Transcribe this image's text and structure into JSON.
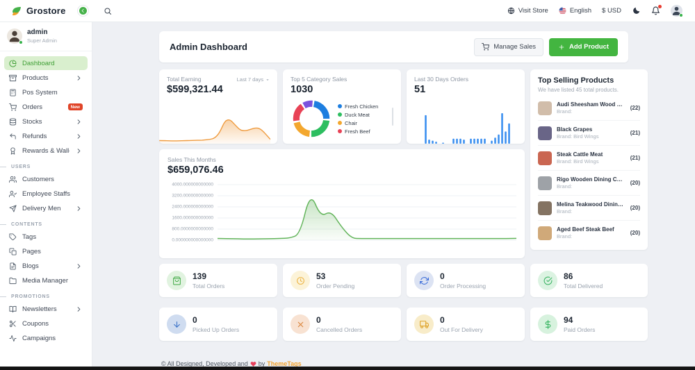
{
  "colors": {
    "primary_green": "#43b540",
    "sidebar_active_bg": "#d9efce",
    "sidebar_active_text": "#3d9e33",
    "badge_red": "#e04428",
    "footer_brand_orange": "#f2a12b",
    "earning_orange": "#ef9b3f",
    "orders_blue": "#3b8ff0",
    "sales_green": "#62b45a"
  },
  "topbar": {
    "brand": "Grostore",
    "visit_store": "Visit Store",
    "language": "English",
    "currency": "$ USD"
  },
  "sidebar": {
    "user": {
      "name": "admin",
      "role": "Super Admin"
    },
    "sections": [
      {
        "title": "",
        "items": [
          {
            "label": "Dashboard",
            "icon": "dashboard",
            "active": true
          },
          {
            "label": "Products",
            "icon": "products",
            "chevron": true
          },
          {
            "label": "Pos System",
            "icon": "pos"
          },
          {
            "label": "Orders",
            "icon": "orders",
            "badge": "New"
          },
          {
            "label": "Stocks",
            "icon": "stocks",
            "chevron": true
          },
          {
            "label": "Refunds",
            "icon": "refunds",
            "chevron": true
          },
          {
            "label": "Rewards & Wallet",
            "icon": "rewards",
            "chevron": true
          }
        ]
      },
      {
        "title": "USERS",
        "items": [
          {
            "label": "Customers",
            "icon": "customers"
          },
          {
            "label": "Employee Staffs",
            "icon": "staffs"
          },
          {
            "label": "Delivery Men",
            "icon": "delivery",
            "chevron": true
          }
        ]
      },
      {
        "title": "CONTENTS",
        "items": [
          {
            "label": "Tags",
            "icon": "tags"
          },
          {
            "label": "Pages",
            "icon": "pages"
          },
          {
            "label": "Blogs",
            "icon": "blogs",
            "chevron": true
          },
          {
            "label": "Media Manager",
            "icon": "media"
          }
        ]
      },
      {
        "title": "PROMOTIONS",
        "items": [
          {
            "label": "Newsletters",
            "icon": "newsletters",
            "chevron": true
          },
          {
            "label": "Coupons",
            "icon": "coupons"
          },
          {
            "label": "Campaigns",
            "icon": "campaigns"
          }
        ]
      }
    ]
  },
  "page": {
    "title": "Admin Dashboard",
    "actions": {
      "manage_sales": "Manage Sales",
      "add_product": "Add Product"
    },
    "cards": {
      "earning": {
        "label": "Total Earning",
        "range": "Last 7 days",
        "value": "$599,321.44"
      },
      "category": {
        "label": "Top 5 Category Sales",
        "value": "1030"
      },
      "orders30": {
        "label": "Last 30 Days Orders",
        "value": "51"
      },
      "sales": {
        "label": "Sales This Months",
        "value": "$659,076.46"
      },
      "top_products": {
        "title": "Top Selling Products",
        "subtitle": "We have listed 45 total products.",
        "items": [
          {
            "name": "Audi Sheesham Wood Dining...",
            "brand": "Brand:",
            "count": "(22)",
            "thumb": "#c9b29b"
          },
          {
            "name": "Black Grapes",
            "brand": "Brand: Bird Wings",
            "count": "(21)",
            "thumb": "#4f4a72"
          },
          {
            "name": "Steak Cattle Meat",
            "brand": "Brand: Bird Wings",
            "count": "(21)",
            "thumb": "#c14b32"
          },
          {
            "name": "Rigo Wooden Dining Chair",
            "brand": "Brand:",
            "count": "(20)",
            "thumb": "#8d9298"
          },
          {
            "name": "Melina Teakwood Dining Chair",
            "brand": "Brand:",
            "count": "(20)",
            "thumb": "#6f5b46"
          },
          {
            "name": "Aged Beef Steak Beef",
            "brand": "Brand:",
            "count": "(20)",
            "thumb": "#c89a62"
          }
        ]
      }
    },
    "stats_left": [
      {
        "value": "139",
        "label": "Total Orders",
        "icon": "bag",
        "color": "#4caf50",
        "bg": "#e1f3e0"
      },
      {
        "value": "53",
        "label": "Order Pending",
        "icon": "clock",
        "color": "#ecb445",
        "bg": "#fcf3d8"
      },
      {
        "value": "0",
        "label": "Order Processing",
        "icon": "refresh",
        "color": "#3e6fd9",
        "bg": "#dce3f3"
      },
      {
        "value": "0",
        "label": "Picked Up Orders",
        "icon": "arrowDown",
        "color": "#3a72c8",
        "bg": "#cfdcf0"
      },
      {
        "value": "0",
        "label": "Cancelled Orders",
        "icon": "x",
        "color": "#d9863c",
        "bg": "#f8e2d2"
      },
      {
        "value": "0",
        "label": "Out For Delivery",
        "icon": "truck",
        "color": "#dfa42c",
        "bg": "#f8ecc9"
      }
    ],
    "stats_right": [
      {
        "value": "86",
        "label": "Total Delivered",
        "icon": "check",
        "color": "#3cb464",
        "bg": "#dcf3e2"
      },
      {
        "value": "94",
        "label": "Paid Orders",
        "icon": "dollar",
        "color": "#35b35f",
        "bg": "#d7f2de"
      }
    ],
    "footer": {
      "text": "© All Designed, Developed and",
      "by": "by",
      "brand": "ThemeTags"
    }
  },
  "chart_data": [
    {
      "id": "earning",
      "type": "area",
      "title": "Total Earning",
      "color": "#ef9b3f",
      "ylim": [
        0,
        100
      ],
      "grid": false,
      "values": [
        6,
        6,
        5,
        5,
        5,
        6,
        6,
        7,
        7,
        8,
        10,
        14,
        34,
        74,
        79,
        60,
        42,
        39,
        44,
        50,
        47,
        30,
        10
      ]
    },
    {
      "id": "category",
      "type": "pie",
      "title": "Top 5 Category Sales",
      "total_label": "1030",
      "legend_position": "right",
      "segments": [
        {
          "label": "Fresh Chicken",
          "value": 24,
          "color": "#1d7ee0"
        },
        {
          "label": "Duck Meat",
          "value": 25,
          "color": "#2dbe60"
        },
        {
          "label": "Chair",
          "value": 21,
          "color": "#f3a72e"
        },
        {
          "label": "Fresh Beef",
          "value": 19,
          "color": "#e84256"
        },
        {
          "label": "",
          "value": 11,
          "color": "#7a52dd"
        }
      ]
    },
    {
      "id": "orders30",
      "type": "bar",
      "title": "Last 30 Days Orders",
      "color": "#3b8ff0",
      "ylim": [
        0,
        30
      ],
      "grid": false,
      "values": [
        0,
        0,
        0,
        0,
        0,
        28,
        4,
        3,
        2,
        0,
        1,
        0,
        0,
        5,
        5,
        5,
        4,
        0,
        5,
        5,
        5,
        5,
        5,
        0,
        3,
        6,
        9,
        30,
        12,
        20
      ]
    },
    {
      "id": "sales",
      "type": "line",
      "title": "Sales This Months",
      "color": "#62b45a",
      "ylim": [
        0,
        4000
      ],
      "grid": true,
      "yticks": [
        "4000.000000000000",
        "3200.000000000000",
        "2400.000000000000",
        "1600.000000000000",
        "800.0000000000000",
        "0.000000000000000"
      ],
      "values": [
        125,
        115,
        95,
        88,
        96,
        106,
        118,
        150,
        420,
        3480,
        1680,
        2120,
        980,
        130,
        120,
        118,
        118,
        118,
        118,
        118,
        118,
        118,
        118,
        118,
        118,
        118,
        118,
        118,
        120,
        130
      ]
    }
  ]
}
